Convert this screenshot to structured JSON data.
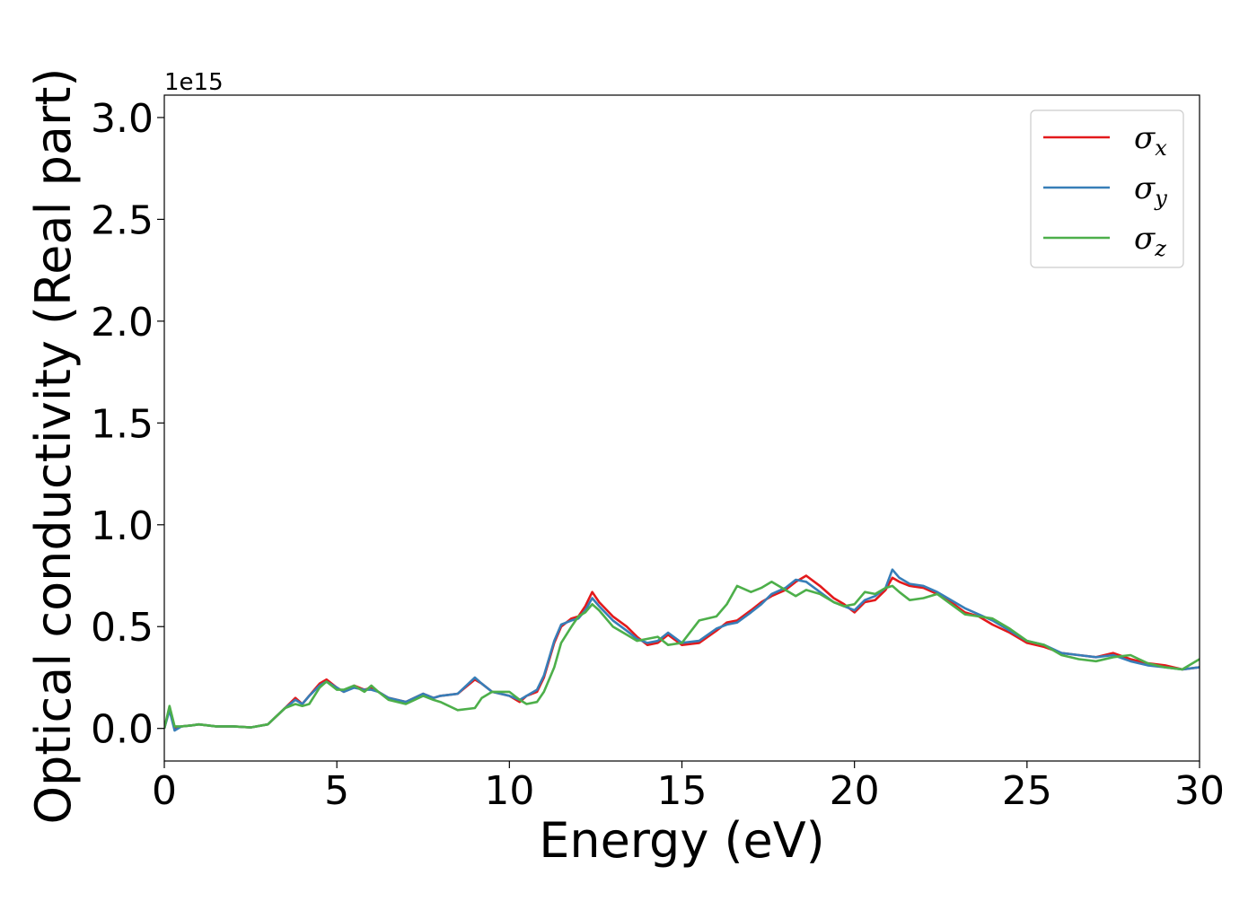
{
  "chart_data": {
    "type": "line",
    "xlabel": "Energy (eV)",
    "ylabel": "Optical conductivity (Real part)",
    "y_offset_text": "1e15",
    "xlim": [
      0,
      30
    ],
    "ylim": [
      -0.16,
      3.11
    ],
    "x_ticks": [
      0,
      5,
      10,
      15,
      20,
      25,
      30
    ],
    "x_tick_labels": [
      "0",
      "5",
      "10",
      "15",
      "20",
      "25",
      "30"
    ],
    "y_ticks": [
      0.0,
      0.5,
      1.0,
      1.5,
      2.0,
      2.5,
      3.0
    ],
    "y_tick_labels": [
      "0.0",
      "0.5",
      "1.0",
      "1.5",
      "2.0",
      "2.5",
      "3.0"
    ],
    "grid": false,
    "legend_position": "top-right",
    "x": [
      0,
      0.15,
      0.3,
      0.5,
      0.8,
      1.0,
      1.5,
      2.0,
      2.5,
      3.0,
      3.5,
      3.8,
      4.0,
      4.2,
      4.5,
      4.7,
      5.0,
      5.2,
      5.5,
      5.8,
      6.0,
      6.2,
      6.5,
      7.0,
      7.5,
      7.8,
      8.0,
      8.5,
      9.0,
      9.2,
      9.5,
      10.0,
      10.3,
      10.5,
      10.8,
      11.0,
      11.3,
      11.5,
      11.8,
      12.0,
      12.2,
      12.4,
      12.6,
      13.0,
      13.4,
      13.7,
      14.0,
      14.3,
      14.6,
      15.0,
      15.5,
      16.0,
      16.3,
      16.6,
      17.0,
      17.3,
      17.6,
      18.0,
      18.3,
      18.6,
      19.0,
      19.4,
      19.7,
      20.0,
      20.3,
      20.6,
      20.9,
      21.1,
      21.3,
      21.6,
      22.0,
      22.4,
      22.8,
      23.2,
      23.6,
      24.0,
      24.5,
      25.0,
      25.5,
      26.0,
      26.5,
      27.0,
      27.5,
      28.0,
      28.5,
      29.0,
      29.5,
      30.0
    ],
    "series": [
      {
        "name": "σx",
        "symbol": "σ",
        "subscript": "x",
        "color": "#e31a1c",
        "values": [
          0.0,
          0.1,
          0.0,
          0.01,
          0.015,
          0.02,
          0.01,
          0.01,
          0.005,
          0.02,
          0.1,
          0.15,
          0.12,
          0.16,
          0.22,
          0.24,
          0.2,
          0.18,
          0.21,
          0.19,
          0.2,
          0.18,
          0.15,
          0.13,
          0.17,
          0.15,
          0.16,
          0.17,
          0.24,
          0.22,
          0.18,
          0.16,
          0.13,
          0.16,
          0.18,
          0.25,
          0.42,
          0.5,
          0.54,
          0.55,
          0.6,
          0.67,
          0.62,
          0.55,
          0.5,
          0.45,
          0.41,
          0.42,
          0.46,
          0.41,
          0.42,
          0.48,
          0.52,
          0.53,
          0.58,
          0.62,
          0.65,
          0.68,
          0.72,
          0.75,
          0.7,
          0.64,
          0.61,
          0.57,
          0.62,
          0.63,
          0.68,
          0.74,
          0.72,
          0.7,
          0.69,
          0.66,
          0.62,
          0.57,
          0.55,
          0.51,
          0.47,
          0.42,
          0.4,
          0.37,
          0.36,
          0.35,
          0.37,
          0.34,
          0.32,
          0.31,
          0.29,
          0.3
        ]
      },
      {
        "name": "σy",
        "symbol": "σ",
        "subscript": "y",
        "color": "#377eb8",
        "values": [
          0.0,
          0.09,
          -0.01,
          0.01,
          0.015,
          0.02,
          0.01,
          0.01,
          0.005,
          0.02,
          0.1,
          0.14,
          0.12,
          0.16,
          0.21,
          0.23,
          0.2,
          0.18,
          0.2,
          0.19,
          0.19,
          0.18,
          0.15,
          0.13,
          0.17,
          0.15,
          0.16,
          0.17,
          0.25,
          0.22,
          0.18,
          0.16,
          0.14,
          0.16,
          0.19,
          0.26,
          0.43,
          0.51,
          0.53,
          0.54,
          0.58,
          0.64,
          0.6,
          0.53,
          0.48,
          0.44,
          0.42,
          0.43,
          0.47,
          0.42,
          0.43,
          0.49,
          0.51,
          0.52,
          0.57,
          0.61,
          0.66,
          0.69,
          0.73,
          0.72,
          0.67,
          0.62,
          0.6,
          0.58,
          0.63,
          0.65,
          0.69,
          0.78,
          0.74,
          0.71,
          0.7,
          0.67,
          0.63,
          0.59,
          0.56,
          0.53,
          0.48,
          0.43,
          0.41,
          0.37,
          0.36,
          0.35,
          0.36,
          0.33,
          0.31,
          0.3,
          0.29,
          0.3
        ]
      },
      {
        "name": "σz",
        "symbol": "σ",
        "subscript": "z",
        "color": "#4daf4a",
        "values": [
          0.0,
          0.11,
          0.01,
          0.01,
          0.015,
          0.02,
          0.01,
          0.01,
          0.005,
          0.02,
          0.1,
          0.12,
          0.11,
          0.12,
          0.2,
          0.23,
          0.19,
          0.19,
          0.21,
          0.18,
          0.21,
          0.18,
          0.14,
          0.12,
          0.16,
          0.14,
          0.13,
          0.09,
          0.1,
          0.15,
          0.18,
          0.18,
          0.14,
          0.12,
          0.13,
          0.18,
          0.3,
          0.42,
          0.5,
          0.55,
          0.57,
          0.61,
          0.58,
          0.5,
          0.46,
          0.43,
          0.44,
          0.45,
          0.41,
          0.42,
          0.53,
          0.55,
          0.61,
          0.7,
          0.67,
          0.69,
          0.72,
          0.68,
          0.65,
          0.68,
          0.66,
          0.62,
          0.6,
          0.61,
          0.67,
          0.66,
          0.69,
          0.7,
          0.67,
          0.63,
          0.64,
          0.66,
          0.61,
          0.56,
          0.55,
          0.54,
          0.49,
          0.43,
          0.41,
          0.36,
          0.34,
          0.33,
          0.35,
          0.36,
          0.32,
          0.3,
          0.29,
          0.34
        ]
      }
    ]
  }
}
